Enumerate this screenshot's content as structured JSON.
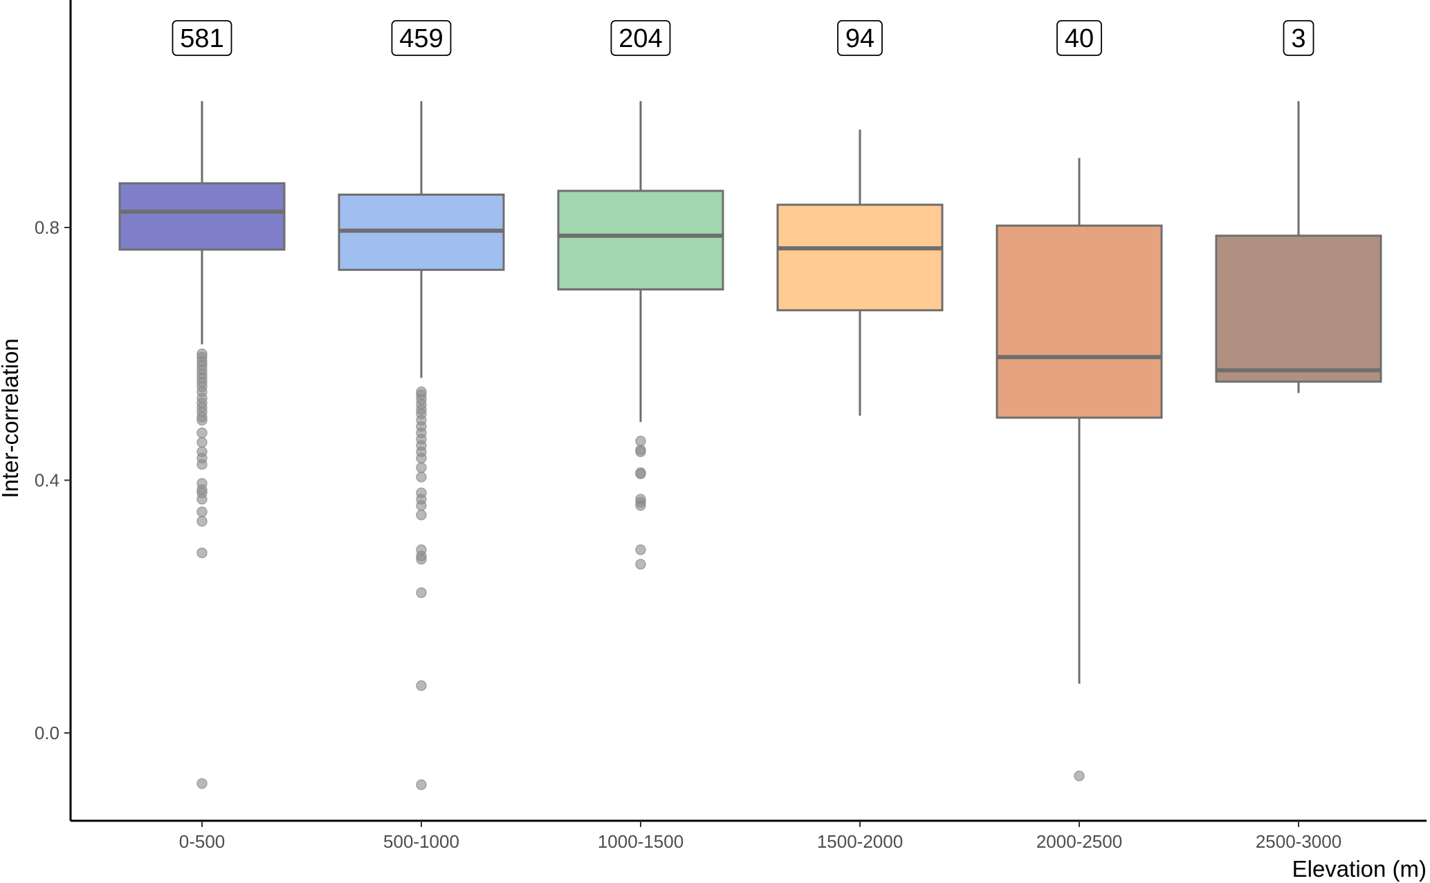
{
  "chart_data": {
    "type": "box",
    "xlabel": "Elevation (m)",
    "ylabel": "Inter-correlation",
    "ylim": [
      -0.14,
      1.16
    ],
    "yticks": [
      "0.0",
      "0.4",
      "0.8"
    ],
    "grid": false,
    "legend": "none",
    "categories": [
      "0-500",
      "500-1000",
      "1000-1500",
      "1500-2000",
      "2000-2500",
      "2500-3000"
    ],
    "boxes": [
      {
        "category": "0-500",
        "count": "581",
        "color": "#7f7fc9",
        "whisker_low": 0.615,
        "q1": 0.765,
        "median": 0.825,
        "q3": 0.87,
        "whisker_high": 1.0,
        "outliers": [
          0.6,
          0.595,
          0.588,
          0.582,
          0.575,
          0.568,
          0.562,
          0.555,
          0.548,
          0.54,
          0.53,
          0.522,
          0.515,
          0.508,
          0.5,
          0.495,
          0.475,
          0.46,
          0.445,
          0.435,
          0.425,
          0.395,
          0.385,
          0.38,
          0.37,
          0.35,
          0.335,
          0.285,
          -0.08
        ]
      },
      {
        "category": "500-1000",
        "count": "459",
        "color": "#a0bff0",
        "whisker_low": 0.562,
        "q1": 0.733,
        "median": 0.795,
        "q3": 0.852,
        "whisker_high": 1.0,
        "outliers": [
          0.54,
          0.535,
          0.528,
          0.52,
          0.512,
          0.505,
          0.495,
          0.485,
          0.475,
          0.465,
          0.455,
          0.445,
          0.435,
          0.42,
          0.405,
          0.38,
          0.37,
          0.36,
          0.345,
          0.29,
          0.28,
          0.275,
          0.222,
          0.075,
          -0.082
        ]
      },
      {
        "category": "1000-1500",
        "count": "204",
        "color": "#a1d6ae",
        "whisker_low": 0.492,
        "q1": 0.702,
        "median": 0.787,
        "q3": 0.858,
        "whisker_high": 1.0,
        "outliers": [
          0.462,
          0.448,
          0.445,
          0.412,
          0.41,
          0.37,
          0.365,
          0.36,
          0.29,
          0.267
        ]
      },
      {
        "category": "1500-2000",
        "count": "94",
        "color": "#ffcb93",
        "whisker_low": 0.502,
        "q1": 0.669,
        "median": 0.767,
        "q3": 0.836,
        "whisker_high": 0.955,
        "outliers": []
      },
      {
        "category": "2000-2500",
        "count": "40",
        "color": "#e5a47f",
        "whisker_low": 0.078,
        "q1": 0.499,
        "median": 0.595,
        "q3": 0.803,
        "whisker_high": 0.91,
        "outliers": [
          -0.068
        ]
      },
      {
        "category": "2500-3000",
        "count": "3",
        "color": "#b09181",
        "whisker_low": 0.538,
        "q1": 0.556,
        "median": 0.574,
        "q3": 0.787,
        "whisker_high": 1.0,
        "outliers": []
      }
    ]
  }
}
